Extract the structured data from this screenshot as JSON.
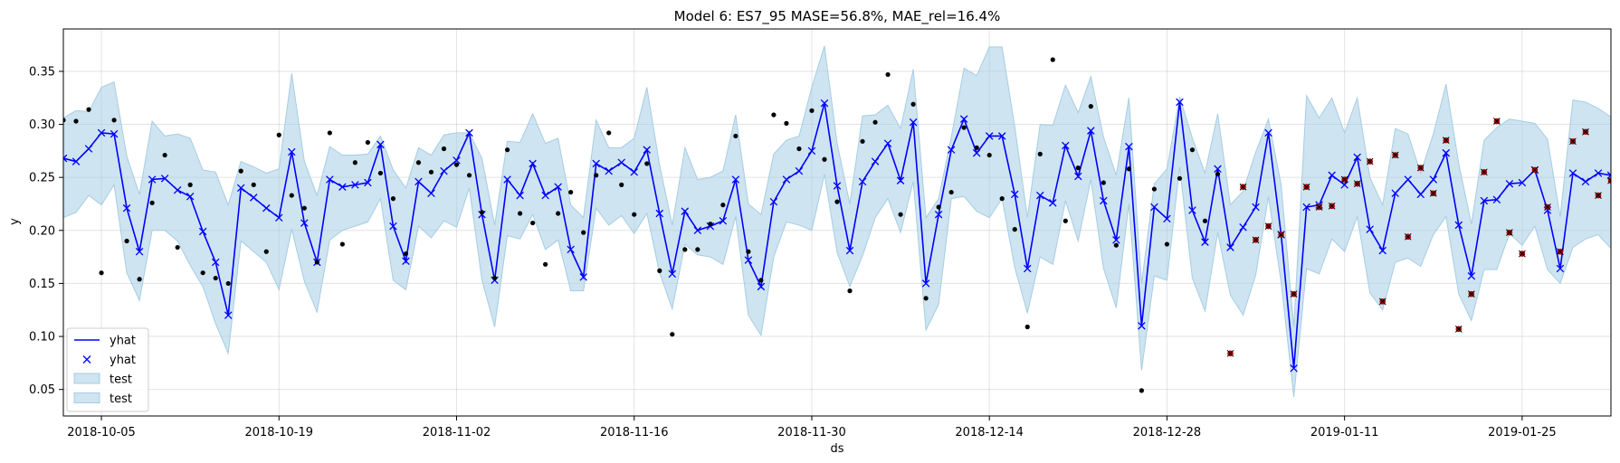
{
  "chart_data": {
    "type": "line",
    "title": "Model 6: ES7_95 MASE=56.8%, MAE_rel=16.4%",
    "xlabel": "ds",
    "ylabel": "y",
    "x_start": "2018-10-02",
    "x_range": [
      "2018-10-02",
      "2019-02-01"
    ],
    "ylim": [
      0.025,
      0.39
    ],
    "x_ticks": [
      "2018-10-05",
      "2018-10-19",
      "2018-11-02",
      "2018-11-16",
      "2018-11-30",
      "2018-12-14",
      "2018-12-28",
      "2019-01-11",
      "2019-01-25"
    ],
    "y_ticks": [
      0.05,
      0.1,
      0.15,
      0.2,
      0.25,
      0.3,
      0.35
    ],
    "grid": true,
    "legend_position": "lower-left",
    "legend": [
      {
        "label": "yhat",
        "kind": "line"
      },
      {
        "label": "yhat",
        "kind": "marker"
      },
      {
        "label": "test",
        "kind": "band"
      },
      {
        "label": "test",
        "kind": "band"
      }
    ],
    "colors": {
      "yhat": "#0000ff",
      "band": "#a6cde3",
      "observed": "#000000",
      "test": "#b40000"
    },
    "yhat": [
      0.268,
      0.265,
      0.277,
      0.292,
      0.291,
      0.221,
      0.18,
      0.248,
      0.249,
      0.238,
      0.232,
      0.199,
      0.17,
      0.12,
      0.24,
      0.231,
      0.221,
      0.212,
      0.274,
      0.207,
      0.17,
      0.248,
      0.241,
      0.243,
      0.245,
      0.281,
      0.204,
      0.171,
      0.246,
      0.235,
      0.256,
      0.266,
      0.292,
      0.215,
      0.153,
      0.248,
      0.233,
      0.263,
      0.233,
      0.241,
      0.182,
      0.156,
      0.263,
      0.256,
      0.264,
      0.255,
      0.276,
      0.216,
      0.159,
      0.218,
      0.2,
      0.204,
      0.209,
      0.248,
      0.172,
      0.147,
      0.227,
      0.248,
      0.256,
      0.275,
      0.32,
      0.242,
      0.181,
      0.246,
      0.265,
      0.282,
      0.247,
      0.302,
      0.15,
      0.215,
      0.276,
      0.305,
      0.273,
      0.289,
      0.289,
      0.234,
      0.164,
      0.233,
      0.226,
      0.28,
      0.251,
      0.294,
      0.228,
      0.191,
      0.279,
      0.11,
      0.222,
      0.211,
      0.321,
      0.219,
      0.189,
      0.258,
      0.184,
      0.203,
      0.222,
      0.292,
      0.196,
      0.07,
      0.222,
      0.224,
      0.252,
      0.243,
      0.269,
      0.201,
      0.181,
      0.235,
      0.248,
      0.234,
      0.248,
      0.273,
      0.205,
      0.157,
      0.228,
      0.229,
      0.244,
      0.245,
      0.257,
      0.219,
      0.164,
      0.254,
      0.246,
      0.254,
      0.252
    ],
    "band_lower": [
      0.212,
      0.217,
      0.233,
      0.224,
      0.243,
      0.16,
      0.134,
      0.2,
      0.2,
      0.19,
      0.167,
      0.147,
      0.112,
      0.084,
      0.19,
      0.18,
      0.17,
      0.144,
      0.201,
      0.152,
      0.123,
      0.191,
      0.2,
      0.204,
      0.208,
      0.23,
      0.153,
      0.144,
      0.204,
      0.193,
      0.209,
      0.203,
      0.24,
      0.153,
      0.109,
      0.195,
      0.192,
      0.215,
      0.182,
      0.191,
      0.143,
      0.143,
      0.221,
      0.205,
      0.214,
      0.197,
      0.216,
      0.16,
      0.126,
      0.187,
      0.177,
      0.175,
      0.168,
      0.213,
      0.12,
      0.101,
      0.175,
      0.208,
      0.205,
      0.2,
      0.253,
      0.179,
      0.147,
      0.176,
      0.212,
      0.23,
      0.198,
      0.246,
      0.106,
      0.13,
      0.23,
      0.232,
      0.218,
      0.212,
      0.23,
      0.165,
      0.122,
      0.175,
      0.168,
      0.228,
      0.19,
      0.248,
      0.164,
      0.127,
      0.225,
      0.068,
      0.157,
      0.153,
      0.26,
      0.155,
      0.124,
      0.198,
      0.139,
      0.12,
      0.158,
      0.232,
      0.151,
      0.043,
      0.164,
      0.159,
      0.192,
      0.18,
      0.213,
      0.141,
      0.125,
      0.17,
      0.174,
      0.166,
      0.196,
      0.213,
      0.14,
      0.115,
      0.163,
      0.163,
      0.197,
      0.186,
      0.204,
      0.163,
      0.15,
      0.184,
      0.192,
      0.196,
      0.183
    ],
    "band_upper": [
      0.306,
      0.313,
      0.312,
      0.335,
      0.34,
      0.27,
      0.234,
      0.303,
      0.289,
      0.291,
      0.287,
      0.257,
      0.255,
      0.224,
      0.265,
      0.26,
      0.254,
      0.258,
      0.348,
      0.265,
      0.233,
      0.279,
      0.271,
      0.271,
      0.272,
      0.289,
      0.257,
      0.24,
      0.278,
      0.271,
      0.29,
      0.292,
      0.292,
      0.268,
      0.205,
      0.284,
      0.283,
      0.31,
      0.282,
      0.287,
      0.224,
      0.212,
      0.304,
      0.278,
      0.278,
      0.287,
      0.335,
      0.262,
      0.205,
      0.278,
      0.248,
      0.25,
      0.256,
      0.309,
      0.225,
      0.215,
      0.272,
      0.285,
      0.289,
      0.335,
      0.374,
      0.282,
      0.225,
      0.308,
      0.309,
      0.318,
      0.296,
      0.352,
      0.212,
      0.23,
      0.288,
      0.353,
      0.346,
      0.373,
      0.373,
      0.298,
      0.212,
      0.3,
      0.299,
      0.337,
      0.311,
      0.345,
      0.288,
      0.252,
      0.325,
      0.15,
      0.244,
      0.258,
      0.326,
      0.287,
      0.254,
      0.31,
      0.224,
      0.237,
      0.274,
      0.305,
      0.243,
      0.109,
      0.327,
      0.306,
      0.325,
      0.292,
      0.325,
      0.25,
      0.224,
      0.296,
      0.291,
      0.254,
      0.291,
      0.338,
      0.263,
      0.206,
      0.285,
      0.297,
      0.305,
      0.303,
      0.301,
      0.286,
      0.213,
      0.323,
      0.321,
      0.315,
      0.307
    ],
    "observed": [
      0.304,
      0.303,
      0.314,
      0.16,
      0.304,
      0.19,
      0.154,
      0.226,
      0.271,
      0.184,
      0.243,
      0.16,
      0.155,
      0.15,
      0.256,
      0.243,
      0.18,
      0.29,
      0.233,
      0.221,
      0.17,
      0.292,
      0.187,
      0.264,
      0.283,
      0.254,
      0.23,
      0.178,
      0.264,
      0.255,
      0.277,
      0.262,
      0.252,
      0.217,
      0.155,
      0.276,
      0.216,
      0.207,
      0.168,
      0.216,
      0.236,
      0.198,
      0.252,
      0.292,
      0.243,
      0.215,
      0.263,
      0.162,
      0.102,
      0.182,
      0.182,
      0.206,
      0.224,
      0.289,
      0.18,
      0.153,
      0.309,
      0.301,
      0.277,
      0.313,
      0.267,
      0.227,
      0.143,
      0.284,
      0.302,
      0.347,
      0.215,
      0.319,
      0.136,
      0.222,
      0.236,
      0.297,
      0.278,
      0.271,
      0.23,
      0.201,
      0.109,
      0.272,
      0.361,
      0.209,
      0.259,
      0.317,
      0.245,
      0.186,
      0.258,
      0.049,
      0.239,
      0.187,
      0.249,
      0.276,
      0.209,
      0.253
    ],
    "test": [
      0.084,
      0.241,
      0.191,
      0.204,
      0.196,
      0.14,
      0.241,
      0.222,
      0.223,
      0.248,
      0.244,
      0.265,
      0.133,
      0.271,
      0.194,
      0.259,
      0.235,
      0.285,
      0.107,
      0.14,
      0.255,
      0.303,
      0.198,
      0.178,
      0.257,
      0.222,
      0.18,
      0.284,
      0.293,
      0.233,
      0.247
    ]
  }
}
